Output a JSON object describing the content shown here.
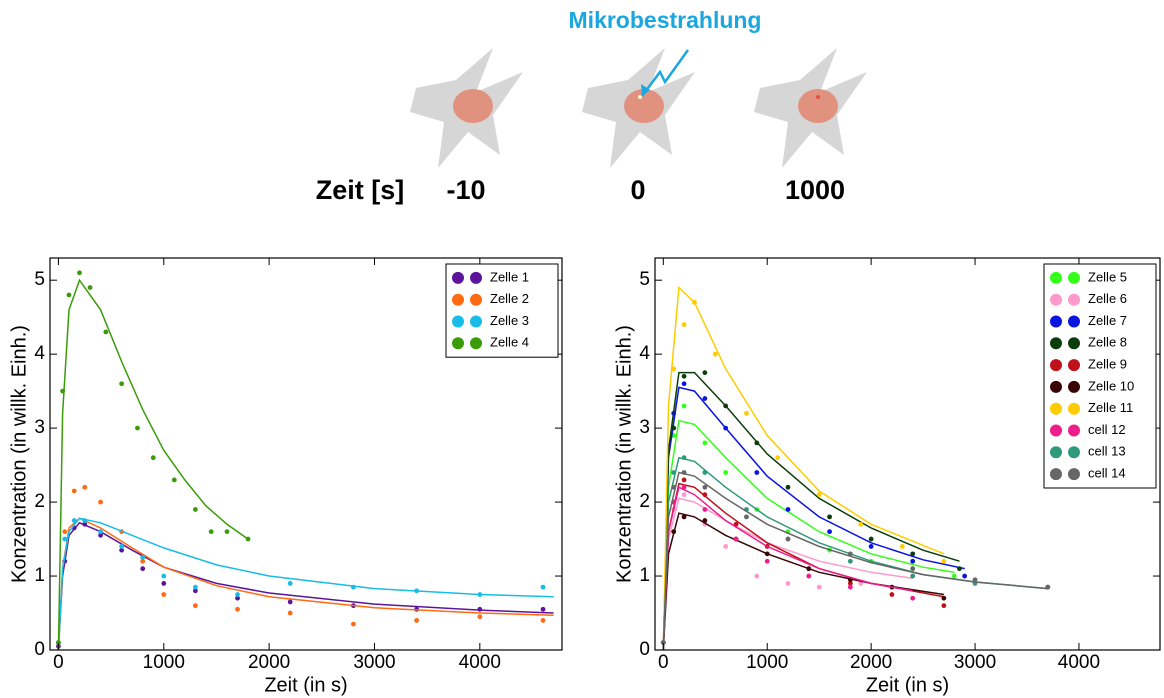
{
  "diagram": {
    "annotation": "Mikrobestrahlung",
    "time_label": "Zeit [s]",
    "times": [
      -10,
      0,
      1000
    ]
  },
  "chart_data": [
    {
      "type": "scatter",
      "xlabel": "Zeit (in s)",
      "ylabel": "Konzentration (in willk. Einh.)",
      "xlim": [
        -80,
        4780
      ],
      "ylim": [
        0,
        5.3
      ],
      "xticks": [
        0,
        1000,
        2000,
        3000,
        4000
      ],
      "yticks": [
        0,
        1,
        2,
        3,
        4,
        5
      ],
      "legend": "upper right",
      "series": [
        {
          "name": "Zelle 1",
          "color": "#5c159a",
          "x": [
            0,
            60,
            150,
            250,
            400,
            600,
            800,
            1000,
            1300,
            1700,
            2200,
            2800,
            3400,
            4000,
            4600
          ],
          "values": [
            0.05,
            1.2,
            1.65,
            1.7,
            1.55,
            1.35,
            1.1,
            0.9,
            0.8,
            0.7,
            0.65,
            0.6,
            0.55,
            0.55,
            0.55
          ],
          "fit": {
            "x": [
              0,
              40,
              100,
              200,
              400,
              700,
              1000,
              1500,
              2000,
              3000,
              4000,
              4700
            ],
            "values": [
              0,
              1.0,
              1.55,
              1.72,
              1.6,
              1.35,
              1.12,
              0.9,
              0.77,
              0.62,
              0.54,
              0.5
            ]
          }
        },
        {
          "name": "Zelle 2",
          "color": "#ff6a13",
          "x": [
            0,
            60,
            150,
            250,
            400,
            600,
            800,
            1000,
            1300,
            1700,
            2200,
            2800,
            3400,
            4000,
            4600
          ],
          "values": [
            0.1,
            1.6,
            2.15,
            2.2,
            2.0,
            1.6,
            1.2,
            0.75,
            0.6,
            0.55,
            0.5,
            0.35,
            0.4,
            0.45,
            0.4
          ],
          "fit": {
            "x": [
              0,
              40,
              100,
              200,
              400,
              700,
              1000,
              1500,
              2000,
              3000,
              4000,
              4700
            ],
            "values": [
              0,
              1.1,
              1.65,
              1.78,
              1.65,
              1.38,
              1.12,
              0.87,
              0.72,
              0.57,
              0.5,
              0.47
            ]
          }
        },
        {
          "name": "Zelle 3",
          "color": "#17bde8",
          "x": [
            0,
            60,
            150,
            250,
            400,
            600,
            800,
            1000,
            1300,
            1700,
            2200,
            2800,
            3400,
            4000,
            4600
          ],
          "values": [
            0.1,
            1.5,
            1.75,
            1.75,
            1.6,
            1.4,
            1.25,
            1.0,
            0.85,
            0.75,
            0.9,
            0.85,
            0.8,
            0.75,
            0.85
          ],
          "fit": {
            "x": [
              0,
              40,
              100,
              200,
              400,
              700,
              1000,
              1500,
              2000,
              3000,
              4000,
              4700
            ],
            "values": [
              0,
              1.1,
              1.6,
              1.78,
              1.72,
              1.55,
              1.38,
              1.15,
              1.0,
              0.83,
              0.75,
              0.72
            ]
          }
        },
        {
          "name": "Zelle 4",
          "color": "#3b9c0a",
          "x": [
            0,
            40,
            100,
            200,
            300,
            450,
            600,
            750,
            900,
            1100,
            1300,
            1450,
            1600,
            1800
          ],
          "values": [
            0.1,
            3.5,
            4.8,
            5.1,
            4.9,
            4.3,
            3.6,
            3.0,
            2.6,
            2.3,
            1.9,
            1.6,
            1.6,
            1.5
          ],
          "fit": {
            "x": [
              0,
              40,
              100,
              200,
              400,
              600,
              800,
              1000,
              1200,
              1400,
              1600,
              1800
            ],
            "values": [
              0,
              3.2,
              4.6,
              5.0,
              4.6,
              3.9,
              3.25,
              2.7,
              2.3,
              1.95,
              1.7,
              1.5
            ]
          }
        }
      ]
    },
    {
      "type": "scatter",
      "xlabel": "Zeit (in s)",
      "ylabel": "Konzentration (in willk. Einh.)",
      "xlim": [
        -80,
        4780
      ],
      "ylim": [
        0,
        5.3
      ],
      "xticks": [
        0,
        1000,
        2000,
        3000,
        4000
      ],
      "yticks": [
        0,
        1,
        2,
        3,
        4,
        5
      ],
      "legend": "upper right",
      "series": [
        {
          "name": "Zelle 5",
          "color": "#33ff1a",
          "x": [
            0,
            100,
            200,
            400,
            600,
            900,
            1200,
            1600,
            2000,
            2400,
            2800
          ],
          "values": [
            0.1,
            2.9,
            3.3,
            2.8,
            2.4,
            1.9,
            1.6,
            1.35,
            1.2,
            1.1,
            1.0
          ],
          "fit": {
            "x": [
              0,
              50,
              150,
              300,
              600,
              1000,
              1500,
              2000,
              2500,
              2800
            ],
            "values": [
              0,
              2.2,
              3.1,
              3.05,
              2.6,
              2.05,
              1.6,
              1.3,
              1.12,
              1.05
            ]
          }
        },
        {
          "name": "Zelle 6",
          "color": "#ff99cc",
          "x": [
            0,
            100,
            200,
            400,
            600,
            900,
            1200,
            1500,
            1900,
            2400
          ],
          "values": [
            0.1,
            1.9,
            2.1,
            1.7,
            1.4,
            1.0,
            0.9,
            0.85,
            0.9,
            1.0
          ],
          "fit": {
            "x": [
              0,
              50,
              150,
              300,
              600,
              1000,
              1500,
              2000,
              2400
            ],
            "values": [
              0,
              1.5,
              2.05,
              2.0,
              1.75,
              1.45,
              1.2,
              1.05,
              0.97
            ]
          }
        },
        {
          "name": "Zelle 7",
          "color": "#0a14e0",
          "x": [
            0,
            100,
            200,
            400,
            600,
            900,
            1200,
            1600,
            2000,
            2400,
            2900
          ],
          "values": [
            0.1,
            3.2,
            3.6,
            3.4,
            3.0,
            2.4,
            1.9,
            1.6,
            1.4,
            1.2,
            1.0
          ],
          "fit": {
            "x": [
              0,
              50,
              150,
              300,
              600,
              1000,
              1500,
              2000,
              2500,
              2900
            ],
            "values": [
              0,
              2.6,
              3.55,
              3.5,
              3.0,
              2.35,
              1.8,
              1.45,
              1.22,
              1.1
            ]
          }
        },
        {
          "name": "Zelle 8",
          "color": "#0a3d0a",
          "x": [
            0,
            100,
            200,
            400,
            600,
            900,
            1200,
            1600,
            2000,
            2400,
            2850
          ],
          "values": [
            0.1,
            3.0,
            3.7,
            3.75,
            3.3,
            2.8,
            2.2,
            1.8,
            1.5,
            1.3,
            1.1
          ],
          "fit": {
            "x": [
              0,
              50,
              150,
              300,
              600,
              1000,
              1500,
              2000,
              2500,
              2850
            ],
            "values": [
              0,
              2.7,
              3.75,
              3.75,
              3.3,
              2.65,
              2.05,
              1.65,
              1.35,
              1.2
            ]
          }
        },
        {
          "name": "Zelle 9",
          "color": "#c0101a",
          "x": [
            0,
            100,
            200,
            400,
            700,
            1000,
            1400,
            1800,
            2200,
            2700
          ],
          "values": [
            0.1,
            2.0,
            2.3,
            2.1,
            1.7,
            1.4,
            1.1,
            0.9,
            0.75,
            0.6
          ],
          "fit": {
            "x": [
              0,
              50,
              150,
              300,
              600,
              1000,
              1500,
              2000,
              2700
            ],
            "values": [
              0,
              1.6,
              2.25,
              2.2,
              1.85,
              1.45,
              1.1,
              0.9,
              0.72
            ]
          }
        },
        {
          "name": "Zelle 10",
          "color": "#3a0505",
          "x": [
            0,
            100,
            200,
            400,
            700,
            1000,
            1400,
            1800,
            2200,
            2700
          ],
          "values": [
            0.1,
            1.6,
            1.8,
            1.75,
            1.5,
            1.3,
            1.1,
            0.95,
            0.85,
            0.7
          ],
          "fit": {
            "x": [
              0,
              50,
              150,
              300,
              600,
              1000,
              1500,
              2000,
              2700
            ],
            "values": [
              0,
              1.3,
              1.85,
              1.8,
              1.55,
              1.3,
              1.05,
              0.9,
              0.75
            ]
          }
        },
        {
          "name": "Zelle 11",
          "color": "#ffcc00",
          "x": [
            0,
            100,
            200,
            300,
            500,
            800,
            1100,
            1500,
            1900,
            2300,
            2700
          ],
          "values": [
            0.1,
            3.8,
            4.4,
            4.7,
            4.0,
            3.2,
            2.6,
            2.1,
            1.7,
            1.4,
            1.2
          ],
          "fit": {
            "x": [
              0,
              50,
              150,
              300,
              600,
              1000,
              1500,
              2000,
              2700
            ],
            "values": [
              0,
              3.3,
              4.9,
              4.7,
              3.8,
              2.9,
              2.15,
              1.7,
              1.3
            ]
          }
        },
        {
          "name": "cell 12",
          "color": "#ee1d8c",
          "x": [
            0,
            100,
            200,
            400,
            700,
            1000,
            1400,
            1800,
            2400
          ],
          "values": [
            0.1,
            2.0,
            2.2,
            1.9,
            1.5,
            1.2,
            1.0,
            0.85,
            0.7
          ],
          "fit": {
            "x": [
              0,
              50,
              150,
              300,
              600,
              1000,
              1500,
              2000,
              2400
            ],
            "values": [
              0,
              1.6,
              2.2,
              2.1,
              1.75,
              1.4,
              1.1,
              0.9,
              0.8
            ]
          }
        },
        {
          "name": "cell 13",
          "color": "#2e9a7a",
          "x": [
            0,
            100,
            200,
            400,
            800,
            1200,
            1800,
            2400,
            3000,
            3700
          ],
          "values": [
            0.1,
            2.4,
            2.6,
            2.4,
            1.9,
            1.5,
            1.2,
            1.0,
            0.9,
            0.85
          ],
          "fit": {
            "x": [
              0,
              50,
              150,
              300,
              600,
              1000,
              1500,
              2000,
              2500,
              3000,
              3700
            ],
            "values": [
              0,
              2.0,
              2.6,
              2.55,
              2.2,
              1.8,
              1.45,
              1.2,
              1.02,
              0.92,
              0.83
            ]
          }
        },
        {
          "name": "cell 14",
          "color": "#666666",
          "x": [
            0,
            100,
            200,
            400,
            800,
            1200,
            1800,
            2400,
            3000,
            3700
          ],
          "values": [
            0.1,
            2.2,
            2.4,
            2.2,
            1.8,
            1.5,
            1.3,
            1.1,
            0.95,
            0.85
          ],
          "fit": {
            "x": [
              0,
              50,
              150,
              300,
              600,
              1000,
              1500,
              2000,
              2500,
              3000,
              3700
            ],
            "values": [
              0,
              1.8,
              2.4,
              2.35,
              2.05,
              1.7,
              1.4,
              1.18,
              1.02,
              0.92,
              0.83
            ]
          }
        }
      ]
    }
  ]
}
